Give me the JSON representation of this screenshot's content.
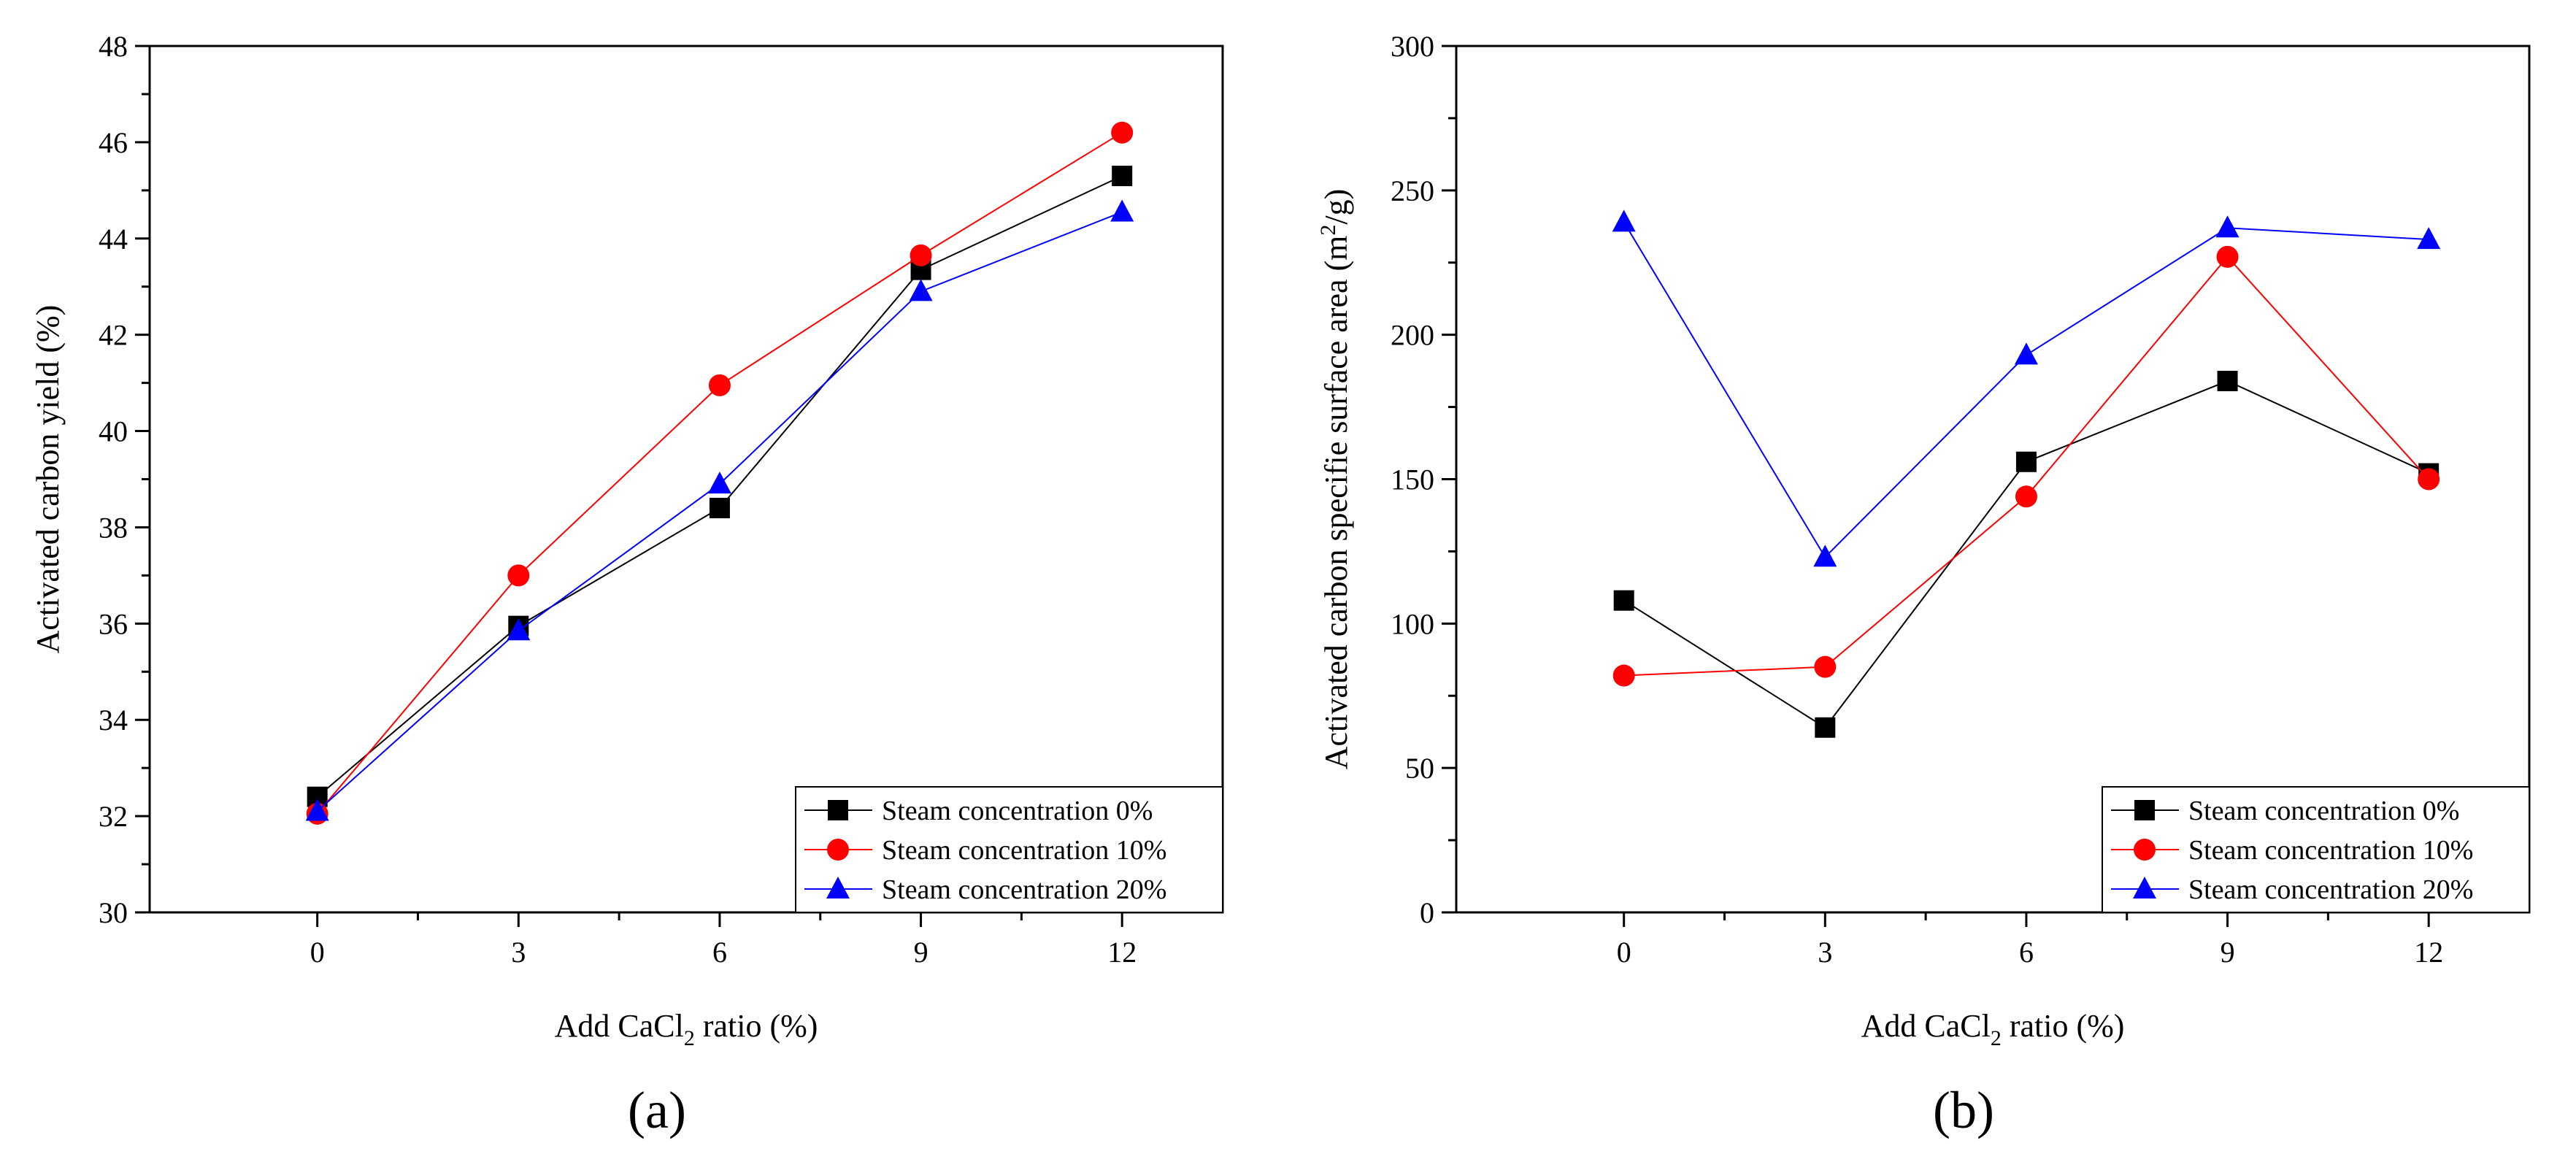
{
  "chart_data": [
    {
      "panel": "a",
      "panel_label": "(a)",
      "type": "line",
      "xlabel": "Add CaCl2 ratio (%)",
      "xlabel_parts": {
        "before": "Add CaCl",
        "sub": "2",
        "after": " ratio (%)"
      },
      "ylabel": "Activated carbon yield (%)",
      "xlim": [
        -2.5,
        13.5
      ],
      "ylim": [
        30,
        48
      ],
      "xticks": [
        0,
        3,
        6,
        9,
        12
      ],
      "yticks": [
        30,
        32,
        34,
        36,
        38,
        40,
        42,
        44,
        46,
        48
      ],
      "x": [
        0,
        3,
        6,
        9,
        12
      ],
      "legend_position": "bottom-right",
      "series": [
        {
          "name": "Steam concentration 0%",
          "color": "#000000",
          "marker": "square",
          "values": [
            32.4,
            35.95,
            38.4,
            43.35,
            45.3
          ]
        },
        {
          "name": "Steam concentration 10%",
          "color": "#ff0000",
          "marker": "circle",
          "values": [
            32.05,
            37.0,
            40.95,
            43.65,
            46.2
          ]
        },
        {
          "name": "Steam concentration 20%",
          "color": "#0000ff",
          "marker": "triangle",
          "values": [
            32.1,
            35.85,
            38.9,
            42.9,
            44.55
          ]
        }
      ]
    },
    {
      "panel": "b",
      "panel_label": "(b)",
      "type": "line",
      "xlabel": "Add CaCl2 ratio (%)",
      "xlabel_parts": {
        "before": "Add CaCl",
        "sub": "2",
        "after": " ratio (%)"
      },
      "ylabel": "Activated carbon specifie surface area (m2/g)",
      "ylabel_parts": {
        "before": "Activated carbon specifie surface area (m",
        "sup": "2",
        "after": "/g)"
      },
      "xlim": [
        -2.5,
        13.5
      ],
      "ylim": [
        0,
        300
      ],
      "xticks": [
        0,
        3,
        6,
        9,
        12
      ],
      "yticks": [
        0,
        50,
        100,
        150,
        200,
        250,
        300
      ],
      "x": [
        0,
        3,
        6,
        9,
        12
      ],
      "legend_position": "bottom-right",
      "series": [
        {
          "name": "Steam concentration 0%",
          "color": "#000000",
          "marker": "square",
          "values": [
            108,
            64,
            156,
            184,
            152
          ]
        },
        {
          "name": "Steam concentration 10%",
          "color": "#ff0000",
          "marker": "circle",
          "values": [
            82,
            85,
            144,
            227,
            150
          ]
        },
        {
          "name": "Steam concentration 20%",
          "color": "#0000ff",
          "marker": "triangle",
          "values": [
            239,
            123,
            193,
            237,
            233
          ]
        }
      ]
    }
  ]
}
